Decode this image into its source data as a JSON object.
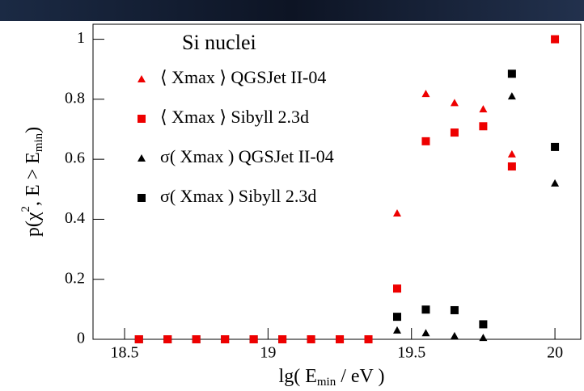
{
  "chart_data": {
    "type": "scatter",
    "title": "Si nuclei",
    "xlabel": [
      "lg( E",
      "min",
      " / eV )"
    ],
    "ylabel": [
      "p(χ",
      "2",
      ", E > E",
      "min",
      ")"
    ],
    "x": [
      18.55,
      18.65,
      18.75,
      18.85,
      18.95,
      19.05,
      19.15,
      19.25,
      19.35,
      19.45,
      19.55,
      19.65,
      19.75,
      19.85,
      20.0
    ],
    "series": [
      {
        "name": "⟨ Xmax ⟩ QGSJet II-04",
        "color": "#ee0000",
        "marker": "triangle",
        "values": [
          0,
          0,
          0,
          0,
          0,
          0,
          0,
          0,
          0,
          0.42,
          0.818,
          0.788,
          0.767,
          0.617,
          1
        ]
      },
      {
        "name": "⟨ Xmax ⟩ Sibyll 2.3d",
        "color": "#ee0000",
        "marker": "square",
        "values": [
          0,
          0,
          0,
          0,
          0,
          0,
          0,
          0,
          0,
          0.169,
          0.66,
          0.689,
          0.71,
          0.576,
          1
        ]
      },
      {
        "name": "σ( Xmax ) QGSJet II-04",
        "color": "#000000",
        "marker": "triangle",
        "values": [
          0,
          0,
          0,
          0,
          0,
          0,
          0,
          0,
          0,
          0.03,
          0.021,
          0.011,
          0.005,
          0.81,
          0.52
        ]
      },
      {
        "name": "σ( Xmax ) Sibyll 2.3d",
        "color": "#000000",
        "marker": "square",
        "values": [
          0,
          0,
          0,
          0,
          0,
          0,
          0,
          0,
          0,
          0.075,
          0.099,
          0.097,
          0.05,
          0.885,
          0.641
        ]
      }
    ],
    "xlim": [
      18.39,
      20.09
    ],
    "ylim": [
      0,
      1.05
    ],
    "xticks": [
      18.5,
      19,
      19.5,
      20
    ],
    "yticks": [
      0,
      0.2,
      0.4,
      0.6,
      0.8,
      1
    ]
  }
}
